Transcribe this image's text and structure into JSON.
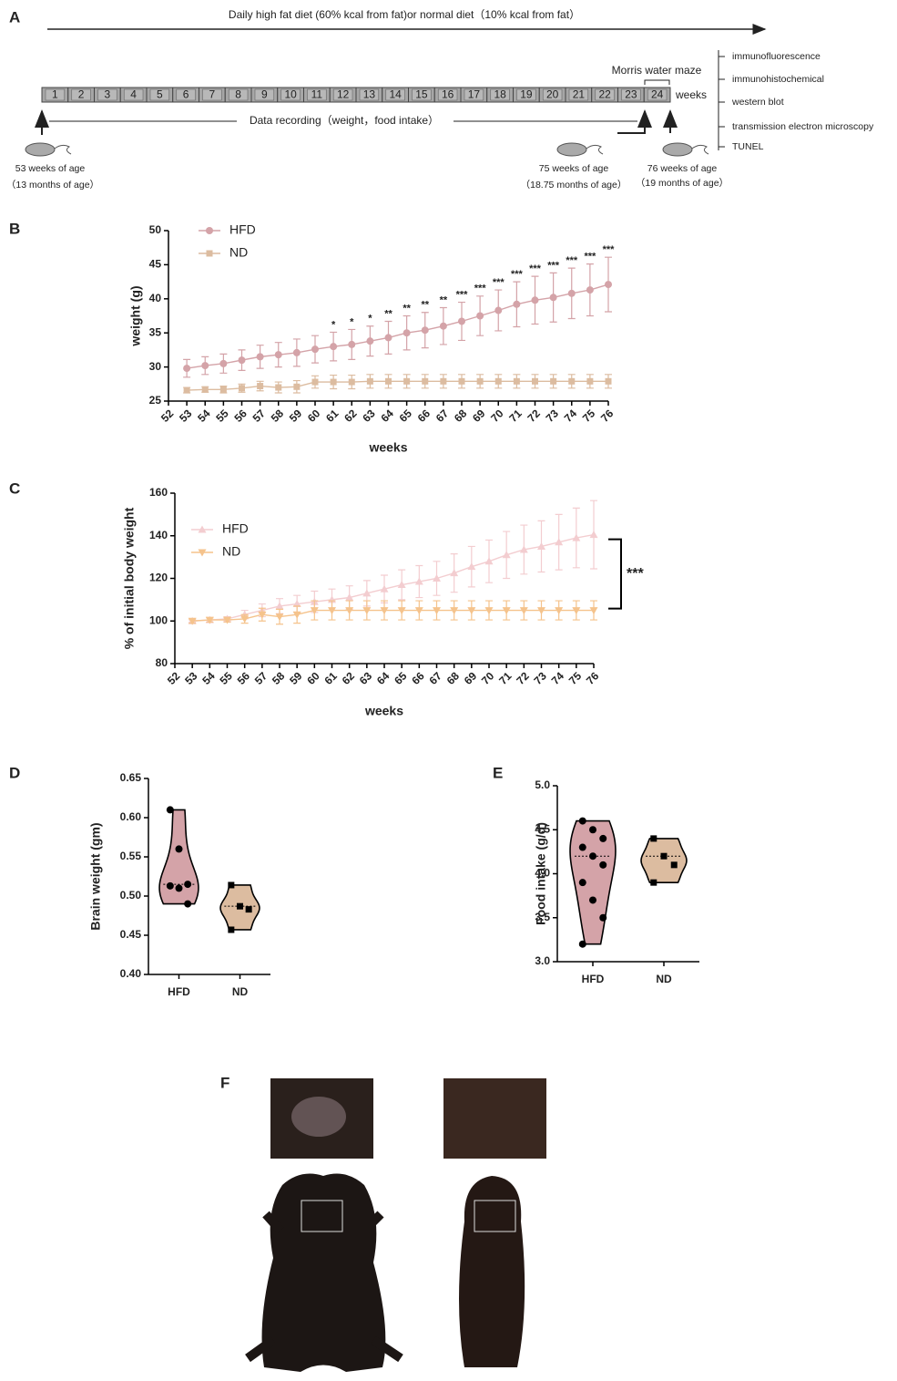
{
  "timeline": {
    "panel": "A",
    "title": "Daily high fat diet (60% kcal from fat)or normal diet（10% kcal from fat）",
    "weeks_boxes": [
      1,
      2,
      3,
      4,
      5,
      6,
      7,
      8,
      9,
      10,
      11,
      12,
      13,
      14,
      15,
      16,
      17,
      18,
      19,
      20,
      21,
      22,
      23,
      24
    ],
    "weeks_label": "weeks",
    "maze": "Morris water maze",
    "recording": "Data recording（weight，food intake）",
    "start_age": "53 weeks of age",
    "start_months": "（13 months of age）",
    "mid_age": "75 weeks of age",
    "mid_months": "（18.75 months of age）",
    "end_age": "76 weeks of age",
    "end_months": "（19 months of age）",
    "assays": [
      "immunofluorescence",
      "immunohistochemical",
      "western blot",
      "transmission electron microscopy",
      "TUNEL"
    ]
  },
  "chart_data": [
    {
      "type": "line",
      "panel": "B",
      "ylabel": "weight (g)",
      "xlabel": "weeks",
      "x": [
        53,
        54,
        55,
        56,
        57,
        58,
        59,
        60,
        61,
        62,
        63,
        64,
        65,
        66,
        67,
        68,
        69,
        70,
        71,
        72,
        73,
        74,
        75,
        76
      ],
      "xlim": [
        52,
        76
      ],
      "xticks": [
        52,
        53,
        54,
        55,
        56,
        57,
        58,
        59,
        60,
        61,
        62,
        63,
        64,
        65,
        66,
        67,
        68,
        69,
        70,
        71,
        72,
        73,
        74,
        75,
        76
      ],
      "ylim": [
        25,
        50
      ],
      "yticks": [
        25,
        30,
        35,
        40,
        45,
        50
      ],
      "series": [
        {
          "name": "HFD",
          "color": "#d4a3a8",
          "marker": "circle",
          "values": [
            29.8,
            30.2,
            30.5,
            31.0,
            31.5,
            31.8,
            32.1,
            32.6,
            33.0,
            33.3,
            33.8,
            34.3,
            35.0,
            35.4,
            36.0,
            36.7,
            37.5,
            38.3,
            39.2,
            39.8,
            40.2,
            40.8,
            41.3,
            42.1
          ],
          "errors": [
            1.3,
            1.3,
            1.4,
            1.5,
            1.7,
            1.8,
            2.0,
            2.0,
            2.1,
            2.2,
            2.2,
            2.4,
            2.5,
            2.6,
            2.7,
            2.8,
            2.9,
            3.0,
            3.3,
            3.5,
            3.6,
            3.7,
            3.8,
            4.0
          ]
        },
        {
          "name": "ND",
          "color": "#dcbca0",
          "marker": "square",
          "values": [
            26.6,
            26.7,
            26.7,
            26.9,
            27.2,
            27.0,
            27.1,
            27.8,
            27.8,
            27.8,
            27.9,
            27.9,
            27.9,
            27.9,
            27.9,
            27.9,
            27.9,
            27.9,
            27.9,
            27.9,
            27.9,
            27.9,
            27.9,
            27.9
          ],
          "errors": [
            0.4,
            0.4,
            0.5,
            0.6,
            0.7,
            0.8,
            0.9,
            0.9,
            1.0,
            1.0,
            1.0,
            1.0,
            1.0,
            1.0,
            1.0,
            1.0,
            1.0,
            1.0,
            1.0,
            1.0,
            1.0,
            1.0,
            1.0,
            1.0
          ]
        }
      ],
      "significance": [
        null,
        null,
        null,
        null,
        null,
        null,
        null,
        null,
        "*",
        "*",
        "*",
        "**",
        "**",
        "**",
        "**",
        "***",
        "***",
        "***",
        "***",
        "***",
        "***",
        "***",
        "***",
        "***"
      ]
    },
    {
      "type": "line",
      "panel": "C",
      "ylabel": "% of initial body weight",
      "xlabel": "weeks",
      "x": [
        53,
        54,
        55,
        56,
        57,
        58,
        59,
        60,
        61,
        62,
        63,
        64,
        65,
        66,
        67,
        68,
        69,
        70,
        71,
        72,
        73,
        74,
        75,
        76
      ],
      "xlim": [
        52,
        76
      ],
      "xticks": [
        52,
        53,
        54,
        55,
        56,
        57,
        58,
        59,
        60,
        61,
        62,
        63,
        64,
        65,
        66,
        67,
        68,
        69,
        70,
        71,
        72,
        73,
        74,
        75,
        76
      ],
      "ylim": [
        80,
        160
      ],
      "yticks": [
        80,
        100,
        120,
        140,
        160
      ],
      "series": [
        {
          "name": "HFD",
          "color": "#f3cdd0",
          "marker": "triangle-up",
          "values": [
            100,
            100.5,
            101,
            103,
            105,
            107,
            108,
            109,
            110,
            111,
            113,
            115,
            117,
            118.5,
            120,
            122.5,
            125.5,
            128,
            131,
            133.5,
            135,
            137,
            139,
            140.5
          ],
          "errors": [
            0.5,
            1,
            1,
            2,
            3,
            3.5,
            4,
            5,
            5,
            5.5,
            6,
            6.5,
            7,
            7.5,
            8,
            9,
            9.5,
            10,
            11,
            11.5,
            12,
            13,
            14,
            16
          ]
        },
        {
          "name": "ND",
          "color": "#f5c38c",
          "marker": "triangle-down",
          "values": [
            100,
            100.5,
            100.5,
            101,
            103,
            102,
            103,
            105,
            105,
            105,
            105,
            105,
            105,
            105,
            105,
            105,
            105,
            105,
            105,
            105,
            105,
            105,
            105,
            105
          ],
          "errors": [
            1,
            1,
            1,
            2,
            3,
            3.5,
            4,
            4.5,
            4.5,
            4.5,
            4.5,
            4.5,
            4.5,
            4.5,
            4.5,
            4.5,
            4.5,
            4.5,
            4.5,
            4.5,
            4.5,
            4.5,
            4.5,
            4.5
          ]
        }
      ],
      "bracket_label": "***"
    },
    {
      "type": "violin",
      "panel": "D",
      "ylabel": "Brain weight (gm)",
      "categories": [
        "HFD",
        "ND"
      ],
      "colors": [
        "#d4a3a8",
        "#dcbca0"
      ],
      "markers": [
        "circle",
        "square"
      ],
      "points": [
        [
          0.61,
          0.56,
          0.515,
          0.513,
          0.51,
          0.49
        ],
        [
          0.514,
          0.487,
          0.483,
          0.457
        ]
      ],
      "ylim": [
        0.4,
        0.65
      ],
      "yticks": [
        {
          "value": 0.4,
          "label": "0.40"
        },
        {
          "value": 0.45,
          "label": "0.45"
        },
        {
          "value": 0.5,
          "label": "0.50"
        },
        {
          "value": 0.55,
          "label": "0.55"
        },
        {
          "value": 0.6,
          "label": "0.60"
        },
        {
          "value": 0.65,
          "label": "0.65"
        }
      ]
    },
    {
      "type": "violin",
      "panel": "E",
      "ylabel": "Food intake (g/d)",
      "categories": [
        "HFD",
        "ND"
      ],
      "colors": [
        "#d4a3a8",
        "#dcbca0"
      ],
      "markers": [
        "circle",
        "square"
      ],
      "points": [
        [
          4.6,
          4.5,
          4.4,
          4.3,
          4.2,
          4.1,
          3.9,
          3.7,
          3.5,
          3.2
        ],
        [
          4.4,
          4.2,
          4.1,
          3.9
        ]
      ],
      "ylim": [
        3,
        5
      ],
      "yticks": [
        {
          "value": 3,
          "label": "3.0"
        },
        {
          "value": 3.5,
          "label": "3.5"
        },
        {
          "value": 4,
          "label": "4.0"
        },
        {
          "value": 4.5,
          "label": "4.5"
        },
        {
          "value": 5,
          "label": "5.0"
        }
      ]
    }
  ],
  "photos": {
    "panel": "F"
  }
}
